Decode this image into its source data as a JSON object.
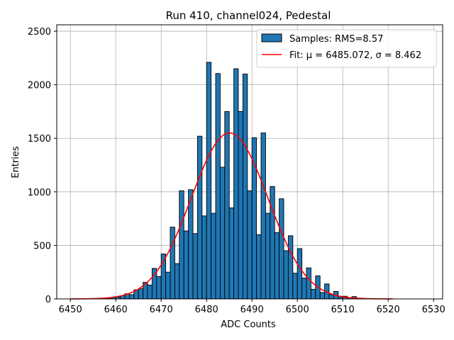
{
  "chart_data": {
    "type": "bar",
    "title": "Run 410, channel024, Pedestal",
    "xlabel": "ADC Counts",
    "ylabel": "Entries",
    "xlim": [
      6447,
      6532
    ],
    "ylim": [
      0,
      2560
    ],
    "xticks": [
      "6450",
      "6460",
      "6470",
      "6480",
      "6490",
      "6500",
      "6510",
      "6520",
      "6530"
    ],
    "yticks": [
      "0",
      "500",
      "1000",
      "1500",
      "2000",
      "2500"
    ],
    "grid": true,
    "legend_position": "top-right",
    "bar_color": "#1f77b4",
    "fit_color": "#ff0000",
    "histogram": {
      "name": "Samples: RMS=8.57",
      "bin_width": 1,
      "bins": [
        [
          6458,
          5
        ],
        [
          6459,
          12
        ],
        [
          6460,
          18
        ],
        [
          6461,
          30
        ],
        [
          6462,
          48
        ],
        [
          6463,
          40
        ],
        [
          6464,
          85
        ],
        [
          6465,
          95
        ],
        [
          6466,
          155
        ],
        [
          6467,
          130
        ],
        [
          6468,
          285
        ],
        [
          6469,
          210
        ],
        [
          6470,
          420
        ],
        [
          6471,
          250
        ],
        [
          6472,
          670
        ],
        [
          6473,
          330
        ],
        [
          6474,
          1010
        ],
        [
          6475,
          635
        ],
        [
          6476,
          1020
        ],
        [
          6477,
          610
        ],
        [
          6478,
          1520
        ],
        [
          6479,
          775
        ],
        [
          6480,
          2210
        ],
        [
          6481,
          800
        ],
        [
          6482,
          2105
        ],
        [
          6483,
          1230
        ],
        [
          6484,
          1750
        ],
        [
          6485,
          850
        ],
        [
          6486,
          2150
        ],
        [
          6487,
          1750
        ],
        [
          6488,
          2100
        ],
        [
          6489,
          1010
        ],
        [
          6490,
          1505
        ],
        [
          6491,
          600
        ],
        [
          6492,
          1550
        ],
        [
          6493,
          800
        ],
        [
          6494,
          1050
        ],
        [
          6495,
          620
        ],
        [
          6496,
          935
        ],
        [
          6497,
          450
        ],
        [
          6498,
          590
        ],
        [
          6499,
          240
        ],
        [
          6500,
          470
        ],
        [
          6501,
          195
        ],
        [
          6502,
          290
        ],
        [
          6503,
          90
        ],
        [
          6504,
          215
        ],
        [
          6505,
          60
        ],
        [
          6506,
          140
        ],
        [
          6507,
          40
        ],
        [
          6508,
          70
        ],
        [
          6509,
          15
        ],
        [
          6510,
          25
        ],
        [
          6511,
          10
        ],
        [
          6512,
          22
        ],
        [
          6513,
          8
        ],
        [
          6514,
          5
        ]
      ]
    },
    "fit": {
      "name": "Fit: μ = 6485.072, σ = 8.462",
      "mu": 6485.072,
      "sigma": 8.462,
      "amplitude": 1550,
      "x_range": [
        6450,
        6521
      ]
    }
  }
}
